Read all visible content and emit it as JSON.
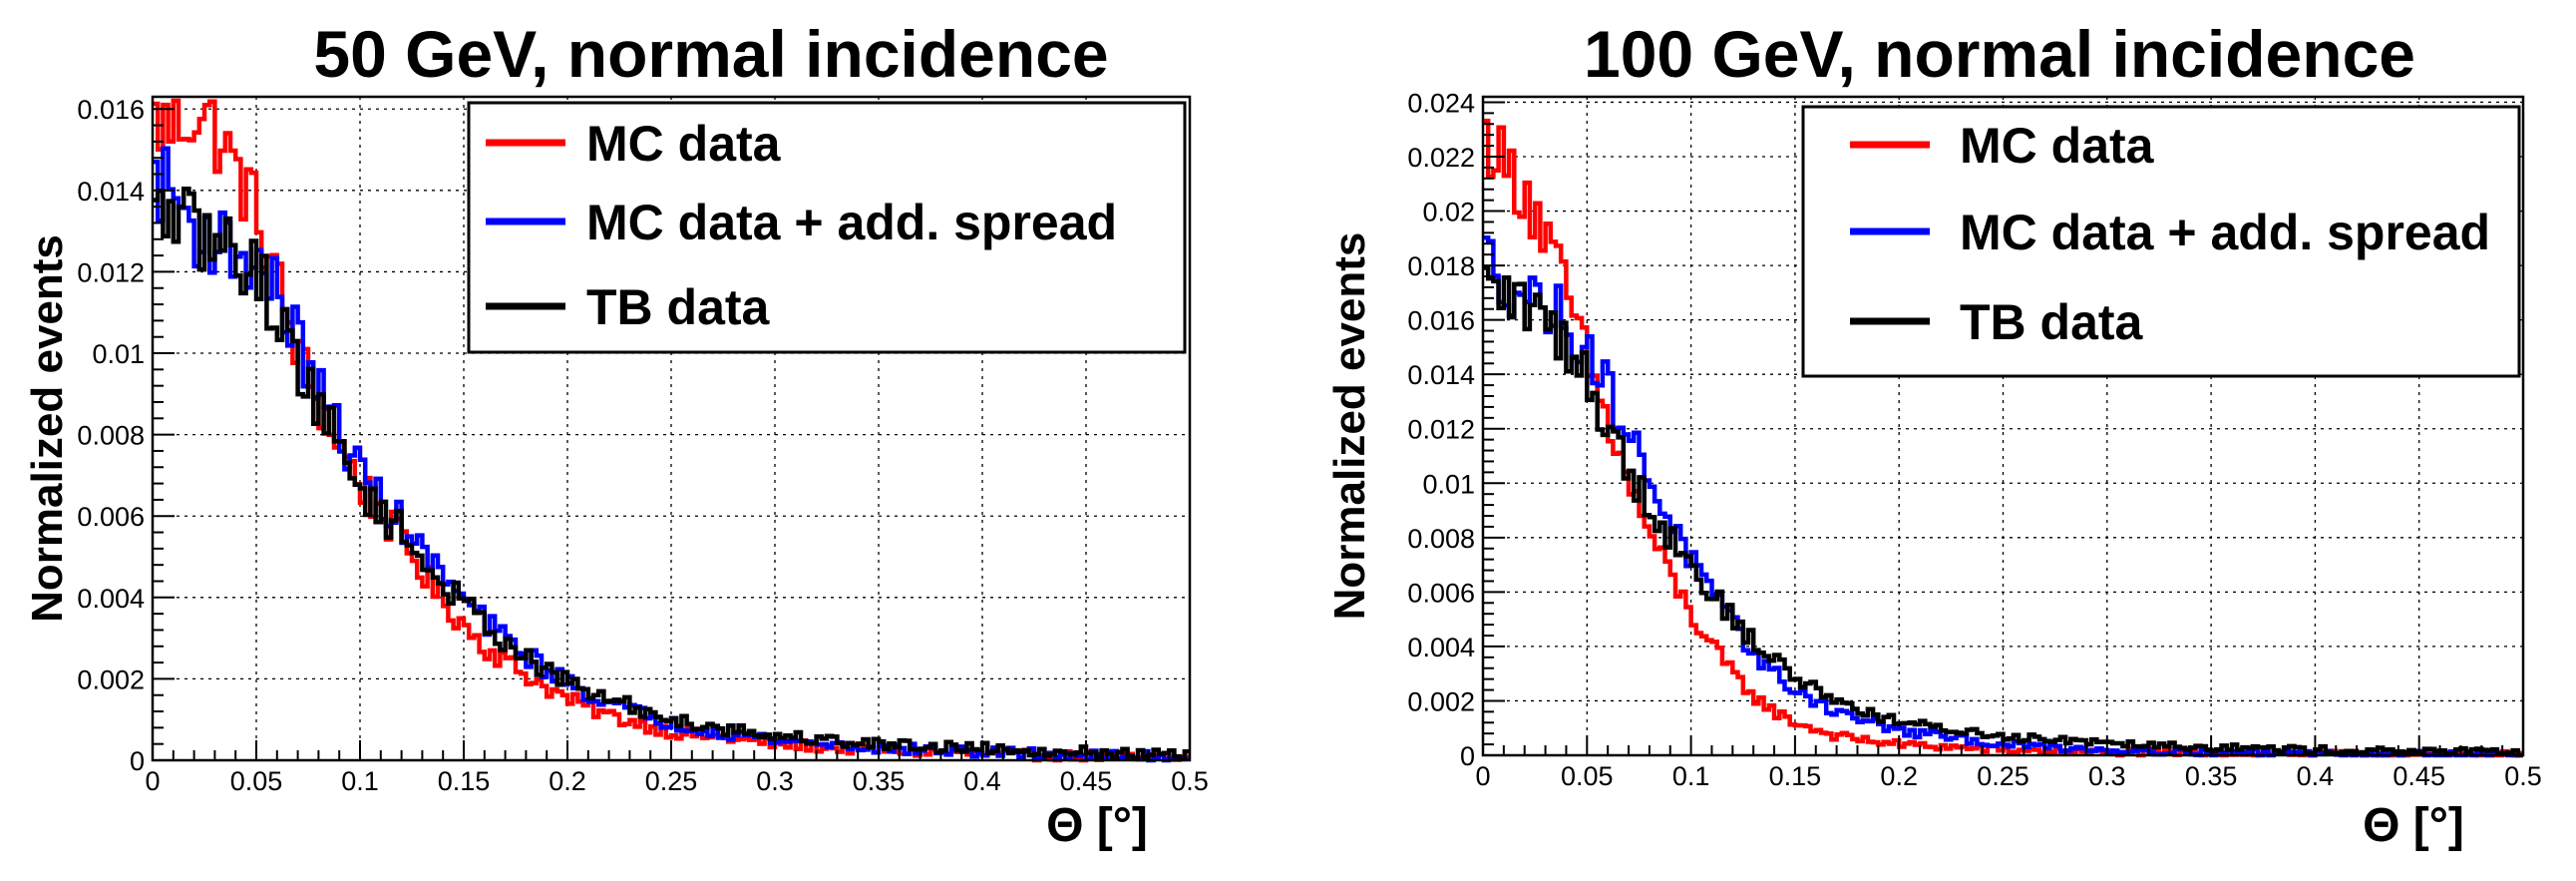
{
  "chart_data": [
    {
      "type": "line",
      "step": true,
      "title": "50 GeV, normal incidence",
      "xlabel": "Θ  [°]",
      "ylabel": "Normalized events",
      "xlim": [
        0,
        0.5
      ],
      "ylim": [
        0,
        0.0163
      ],
      "xticks": [
        0,
        0.05,
        0.1,
        0.15,
        0.2,
        0.25,
        0.3,
        0.35,
        0.4,
        0.45,
        0.5
      ],
      "xtick_labels": [
        "0",
        "0.05",
        "0.1",
        "0.15",
        "0.2",
        "0.25",
        "0.3",
        "0.35",
        "0.4",
        "0.45",
        "0.5"
      ],
      "yticks": [
        0,
        0.002,
        0.004,
        0.006,
        0.008,
        0.01,
        0.012,
        0.014,
        0.016
      ],
      "ytick_labels": [
        "0",
        "0.002",
        "0.004",
        "0.006",
        "0.008",
        "0.01",
        "0.012",
        "0.014",
        "0.016"
      ],
      "grid": true,
      "legend_position": "top-right",
      "series": [
        {
          "name": "MC data",
          "color": "#ff0000",
          "x": [
            0,
            0.01,
            0.02,
            0.03,
            0.04,
            0.05,
            0.06,
            0.07,
            0.08,
            0.09,
            0.1,
            0.12,
            0.14,
            0.16,
            0.18,
            0.2,
            0.22,
            0.25,
            0.3,
            0.35,
            0.4,
            0.45,
            0.5
          ],
          "y": [
            0.0157,
            0.0155,
            0.016,
            0.0155,
            0.0145,
            0.0135,
            0.0118,
            0.01,
            0.0088,
            0.0078,
            0.0068,
            0.0054,
            0.0039,
            0.0028,
            0.0021,
            0.0015,
            0.0011,
            0.0007,
            0.0004,
            0.00025,
            0.00015,
            0.0001,
            5e-05
          ]
        },
        {
          "name": "MC data + add. spread",
          "color": "#0000ff",
          "x": [
            0,
            0.01,
            0.02,
            0.03,
            0.04,
            0.05,
            0.06,
            0.07,
            0.08,
            0.09,
            0.1,
            0.12,
            0.14,
            0.16,
            0.18,
            0.2,
            0.22,
            0.25,
            0.3,
            0.35,
            0.4,
            0.45,
            0.5
          ],
          "y": [
            0.0143,
            0.014,
            0.013,
            0.0128,
            0.0125,
            0.0122,
            0.0115,
            0.0103,
            0.0091,
            0.0081,
            0.0071,
            0.0058,
            0.0045,
            0.0034,
            0.0026,
            0.0019,
            0.0014,
            0.0009,
            0.0005,
            0.0003,
            0.0002,
            0.00012,
            8e-05
          ]
        },
        {
          "name": "TB data",
          "color": "#000000",
          "x": [
            0,
            0.01,
            0.02,
            0.03,
            0.04,
            0.05,
            0.06,
            0.07,
            0.08,
            0.09,
            0.1,
            0.12,
            0.14,
            0.16,
            0.18,
            0.2,
            0.22,
            0.25,
            0.3,
            0.35,
            0.4,
            0.45,
            0.5
          ],
          "y": [
            0.0133,
            0.0135,
            0.013,
            0.0127,
            0.0125,
            0.012,
            0.011,
            0.0098,
            0.0087,
            0.0077,
            0.0067,
            0.0056,
            0.0043,
            0.0034,
            0.0025,
            0.0019,
            0.0015,
            0.001,
            0.0006,
            0.0004,
            0.0003,
            0.0002,
            0.0001
          ]
        }
      ]
    },
    {
      "type": "line",
      "step": true,
      "title": "100 GeV, normal incidence",
      "xlabel": "Θ  [°]",
      "ylabel": "Normalized events",
      "xlim": [
        0,
        0.5
      ],
      "ylim": [
        0,
        0.0242
      ],
      "xticks": [
        0,
        0.05,
        0.1,
        0.15,
        0.2,
        0.25,
        0.3,
        0.35,
        0.4,
        0.45,
        0.5
      ],
      "xtick_labels": [
        "0",
        "0.05",
        "0.1",
        "0.15",
        "0.2",
        "0.25",
        "0.3",
        "0.35",
        "0.4",
        "0.45",
        "0.5"
      ],
      "yticks": [
        0,
        0.002,
        0.004,
        0.006,
        0.008,
        0.01,
        0.012,
        0.014,
        0.016,
        0.018,
        0.02,
        0.022,
        0.024
      ],
      "ytick_labels": [
        "0",
        "0.002",
        "0.004",
        "0.006",
        "0.008",
        "0.01",
        "0.012",
        "0.014",
        "0.016",
        "0.018",
        "0.02",
        "0.022",
        "0.024"
      ],
      "grid": true,
      "legend_position": "top-right",
      "series": [
        {
          "name": "MC data",
          "color": "#ff0000",
          "x": [
            0,
            0.005,
            0.01,
            0.02,
            0.03,
            0.04,
            0.05,
            0.06,
            0.07,
            0.08,
            0.09,
            0.1,
            0.11,
            0.12,
            0.13,
            0.14,
            0.15,
            0.17,
            0.2,
            0.25,
            0.3,
            0.35,
            0.4,
            0.45,
            0.5
          ],
          "y": [
            0.0225,
            0.0228,
            0.0215,
            0.021,
            0.019,
            0.017,
            0.0145,
            0.0122,
            0.01,
            0.0082,
            0.0066,
            0.0052,
            0.004,
            0.003,
            0.0022,
            0.0016,
            0.0012,
            0.0007,
            0.0004,
            0.0002,
            0.0001,
            8e-05,
            5e-05,
            3e-05,
            2e-05
          ]
        },
        {
          "name": "MC data + add. spread",
          "color": "#0000ff",
          "x": [
            0,
            0.005,
            0.01,
            0.02,
            0.03,
            0.04,
            0.05,
            0.06,
            0.07,
            0.08,
            0.09,
            0.1,
            0.11,
            0.12,
            0.13,
            0.14,
            0.15,
            0.17,
            0.2,
            0.25,
            0.3,
            0.35,
            0.4,
            0.45,
            0.5
          ],
          "y": [
            0.0185,
            0.018,
            0.0175,
            0.017,
            0.0165,
            0.016,
            0.015,
            0.0135,
            0.0118,
            0.0102,
            0.0087,
            0.0072,
            0.0059,
            0.0048,
            0.0038,
            0.003,
            0.0024,
            0.0016,
            0.0009,
            0.0004,
            0.0002,
            0.00012,
            8e-05,
            5e-05,
            3e-05
          ]
        },
        {
          "name": "TB data",
          "color": "#000000",
          "x": [
            0,
            0.005,
            0.01,
            0.02,
            0.03,
            0.04,
            0.05,
            0.06,
            0.07,
            0.08,
            0.09,
            0.1,
            0.11,
            0.12,
            0.13,
            0.14,
            0.15,
            0.17,
            0.2,
            0.25,
            0.3,
            0.35,
            0.4,
            0.45,
            0.5
          ],
          "y": [
            0.0173,
            0.0172,
            0.017,
            0.0165,
            0.016,
            0.0152,
            0.0138,
            0.0122,
            0.0105,
            0.0092,
            0.0081,
            0.007,
            0.006,
            0.005,
            0.0042,
            0.0035,
            0.0029,
            0.002,
            0.0012,
            0.0007,
            0.0005,
            0.0003,
            0.0002,
            0.00015,
            0.0001
          ]
        }
      ]
    }
  ]
}
